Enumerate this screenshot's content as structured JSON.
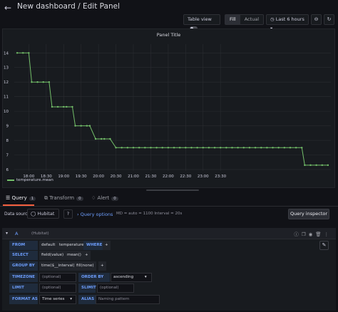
{
  "header": {
    "title": "New dashboard / Edit Panel",
    "table_view_label": "Table view",
    "fill_label": "Fill",
    "actual_label": "Actual",
    "time_range": "Last 6 hours"
  },
  "panel": {
    "title": "Panel Title",
    "legend_series": "temperature.mean"
  },
  "chart_data": {
    "type": "line",
    "title": "Panel Title",
    "x_tick_labels": [
      "18:00",
      "18:30",
      "19:00",
      "19:30",
      "20:00",
      "20:30",
      "21:00",
      "21:30",
      "22:00",
      "22:30",
      "23:00",
      "23:30"
    ],
    "y_tick_labels": [
      "14",
      "13",
      "12",
      "11",
      "10",
      "9",
      "8",
      "7",
      "6"
    ],
    "ylim": [
      5.9,
      14.6
    ],
    "grid": true,
    "legend": "bottom-left",
    "series": [
      {
        "name": "temperature.mean",
        "color": "#73bf69",
        "x_minutes_from_1800": [
          -20,
          -10,
          0,
          5,
          15,
          25,
          35,
          40,
          50,
          60,
          65,
          75,
          80,
          90,
          100,
          105,
          115,
          125,
          130,
          140,
          150,
          160,
          170,
          180,
          190,
          200,
          210,
          220,
          230,
          240,
          250,
          260,
          270,
          280,
          290,
          300,
          310,
          320,
          330,
          340,
          350,
          360,
          370,
          380,
          390,
          400,
          410,
          420,
          430,
          440,
          450,
          460,
          470,
          475,
          485,
          495,
          505,
          515
        ],
        "values_approx": [
          14,
          14,
          14,
          12,
          12,
          12,
          12,
          10.3,
          10.3,
          10.3,
          10.3,
          10.3,
          9,
          9,
          9,
          9,
          8.1,
          8.1,
          8.1,
          8.1,
          7.5,
          7.5,
          7.5,
          7.5,
          7.5,
          7.5,
          7.5,
          7.5,
          7.5,
          7.5,
          7.5,
          7.5,
          7.5,
          7.5,
          7.5,
          7.5,
          7.5,
          7.5,
          7.5,
          7.5,
          7.5,
          7.5,
          7.5,
          7.5,
          7.5,
          7.5,
          7.5,
          7.5,
          7.5,
          7.5,
          7.5,
          7.5,
          7.5,
          6.3,
          6.3,
          6.3,
          6.3,
          6.3
        ]
      }
    ]
  },
  "tabs": [
    {
      "label": "Query",
      "count": "1"
    },
    {
      "label": "Transform",
      "count": "0"
    },
    {
      "label": "Alert",
      "count": "0"
    }
  ],
  "datasource": {
    "label": "Data source",
    "value": "Hubitat",
    "query_options_label": "Query options",
    "query_options_meta": "MD = auto = 1100   Interval = 20s",
    "inspector_label": "Query inspector"
  },
  "query": {
    "name": "A",
    "datasource": "(Hubitat)",
    "from_kw": "FROM",
    "from_policy": "default",
    "from_measurement": "temperature",
    "where_kw": "WHERE",
    "select_kw": "SELECT",
    "select_field": "field(value)",
    "select_fn": "mean()",
    "groupby_kw": "GROUP BY",
    "groupby_time": "time($__interval)",
    "groupby_fill": "fill(none)",
    "timezone_kw": "TIMEZONE",
    "timezone_ph": "(optional)",
    "orderby_kw": "ORDER BY TIME",
    "orderby_value": "ascending",
    "limit_kw": "LIMIT",
    "limit_ph": "(optional)",
    "slimit_kw": "SLIMIT",
    "slimit_ph": "(optional)",
    "format_kw": "FORMAT AS",
    "format_value": "Time series",
    "alias_kw": "ALIAS",
    "alias_ph": "Naming pattern",
    "plus": "+"
  }
}
